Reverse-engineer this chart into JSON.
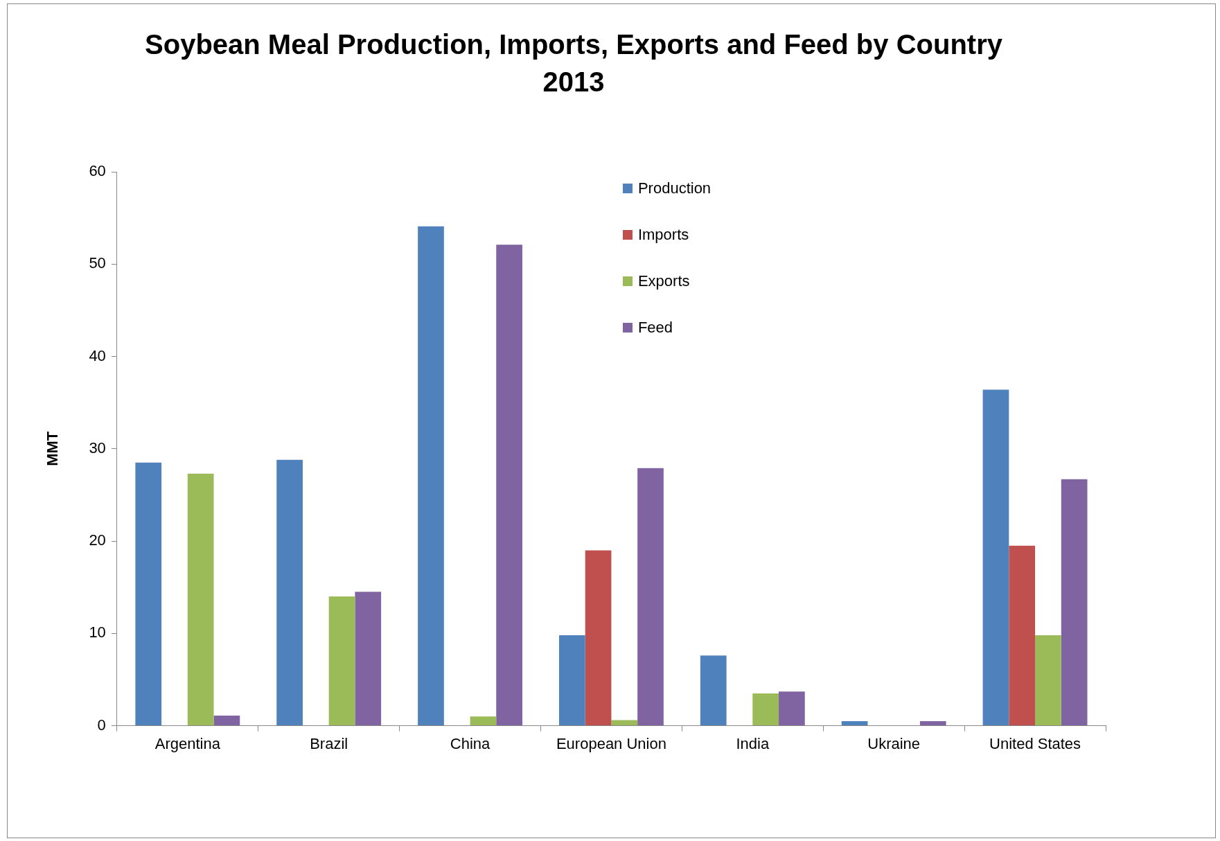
{
  "chart_data": {
    "type": "bar",
    "title": "Soybean Meal Production, Imports, Exports and Feed by Country 2013",
    "ylabel": "MMT",
    "categories": [
      "Argentina",
      "Brazil",
      "China",
      "European Union",
      "India",
      "Ukraine",
      "United States"
    ],
    "series": [
      {
        "name": "Production",
        "color": "#4f81bd",
        "values": [
          28.5,
          28.8,
          54.1,
          9.8,
          7.6,
          0.5,
          36.4
        ]
      },
      {
        "name": "Imports",
        "color": "#c0504d",
        "values": [
          0,
          0,
          0,
          19.0,
          0,
          0,
          19.5
        ]
      },
      {
        "name": "Exports",
        "color": "#9bbb59",
        "values": [
          27.3,
          14.0,
          1.0,
          0.6,
          3.5,
          0,
          9.8
        ]
      },
      {
        "name": "Feed",
        "color": "#8064a2",
        "values": [
          1.1,
          14.5,
          52.1,
          27.9,
          3.7,
          0.5,
          26.7
        ]
      }
    ],
    "ylim": [
      0,
      60
    ],
    "yticks": [
      0,
      10,
      20,
      30,
      40,
      50,
      60
    ],
    "grid": false,
    "legend": "top"
  }
}
